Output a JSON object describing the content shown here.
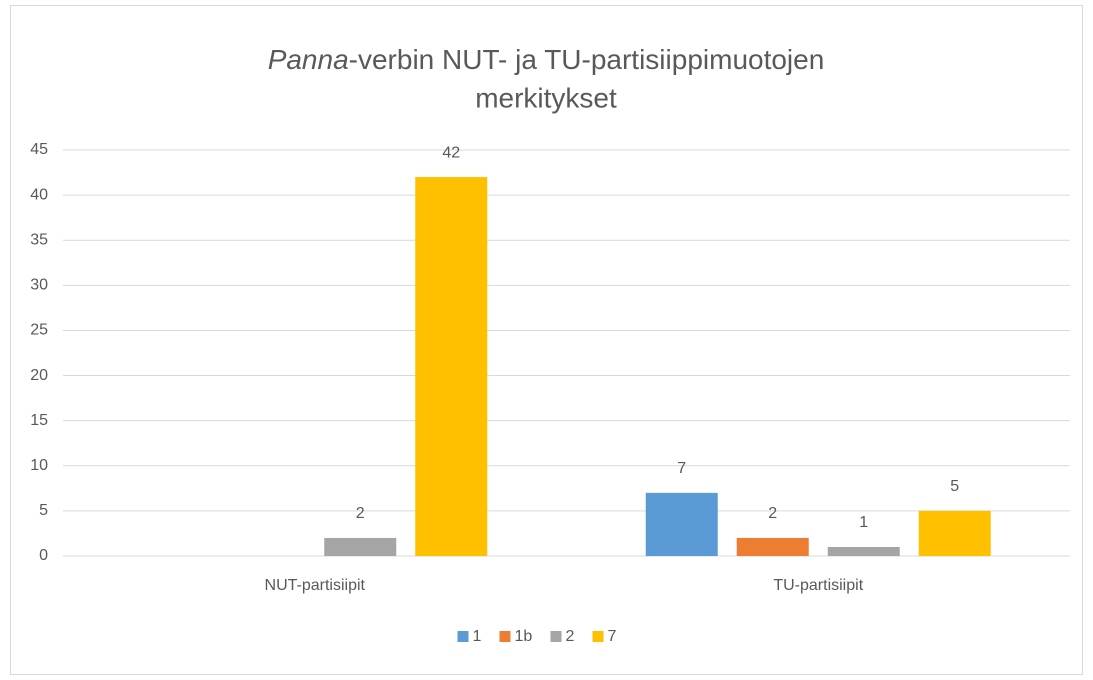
{
  "chart_data": {
    "type": "bar",
    "title": [
      "Panna",
      "-verbin NUT- ja TU-partisiippimuotojen",
      "merkitykset"
    ],
    "categories": [
      "NUT-partisiipit",
      "TU-partisiipit"
    ],
    "series": [
      {
        "name": "1",
        "color": "#5b9bd5",
        "values": [
          null,
          7
        ]
      },
      {
        "name": "1b",
        "color": "#ed7d31",
        "values": [
          null,
          2
        ]
      },
      {
        "name": "2",
        "color": "#a5a5a5",
        "values": [
          2,
          1
        ]
      },
      {
        "name": "7",
        "color": "#ffc000",
        "values": [
          42,
          5
        ]
      }
    ],
    "ylim": [
      0,
      45
    ],
    "yticks": [
      0,
      5,
      10,
      15,
      20,
      25,
      30,
      35,
      40,
      45
    ],
    "grid": true,
    "legend": "bottom"
  }
}
